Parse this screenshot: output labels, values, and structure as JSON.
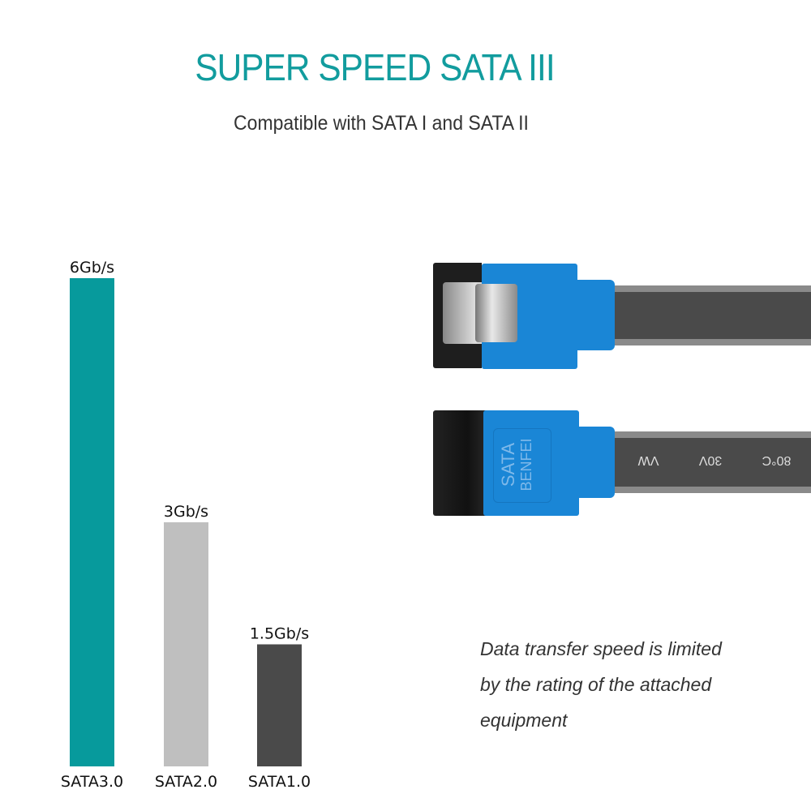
{
  "header": {
    "title": "SUPER SPEED SATA III",
    "subtitle": "Compatible with SATA I and SATA II"
  },
  "chart_data": {
    "type": "bar",
    "categories": [
      "SATA3.0",
      "SATA2.0",
      "SATA1.0"
    ],
    "values": [
      6,
      3,
      1.5
    ],
    "data_labels": [
      "6Gb/s",
      "3Gb/s",
      "1.5Gb/s"
    ],
    "colors": [
      "#079a9c",
      "#bfbfbf",
      "#4a4a4a"
    ],
    "ylim": [
      0,
      6
    ],
    "grid": false,
    "axes_visible": false
  },
  "note": {
    "lines": [
      "Data transfer speed is limited",
      "by the rating of the attached",
      "equipment"
    ]
  },
  "product": {
    "connector_brand": "BENFEI",
    "connector_label": "SATA",
    "cable_markings": [
      "VW",
      "30V",
      "80°C"
    ],
    "colors": {
      "connector": "#1a86d6",
      "cable": "#4a4a4a",
      "plug": "#1e1e1e"
    }
  }
}
